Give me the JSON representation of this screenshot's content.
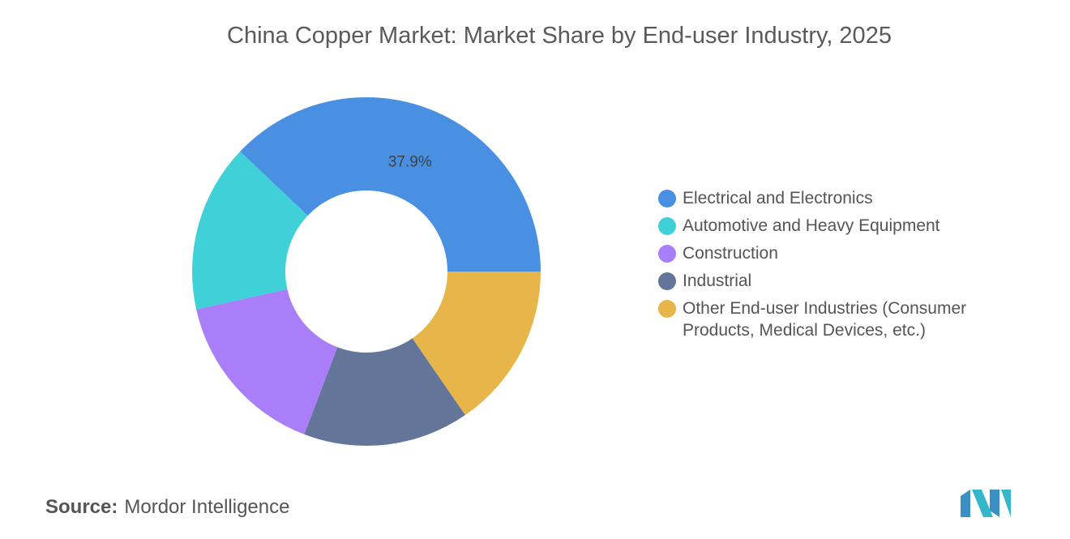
{
  "chart_data": {
    "type": "donut",
    "title": "China Copper Market: Market Share by End-user Industry, 2025",
    "categories": [
      "Electrical and Electronics",
      "Automotive and Heavy Equipment",
      "Construction",
      "Industrial",
      "Other End-user Industries (Consumer Products, Medical Devices, etc.)"
    ],
    "values": [
      37.9,
      15.6,
      15.7,
      15.4,
      15.4
    ],
    "value_labels": [
      "37.9%",
      null,
      null,
      null,
      null
    ],
    "colors": [
      "#4a90e2",
      "#3fd0d8",
      "#a97ef8",
      "#637699",
      "#e8b54a"
    ],
    "legend": "right",
    "source_label": "Source:",
    "source": "Mordor Intelligence"
  }
}
